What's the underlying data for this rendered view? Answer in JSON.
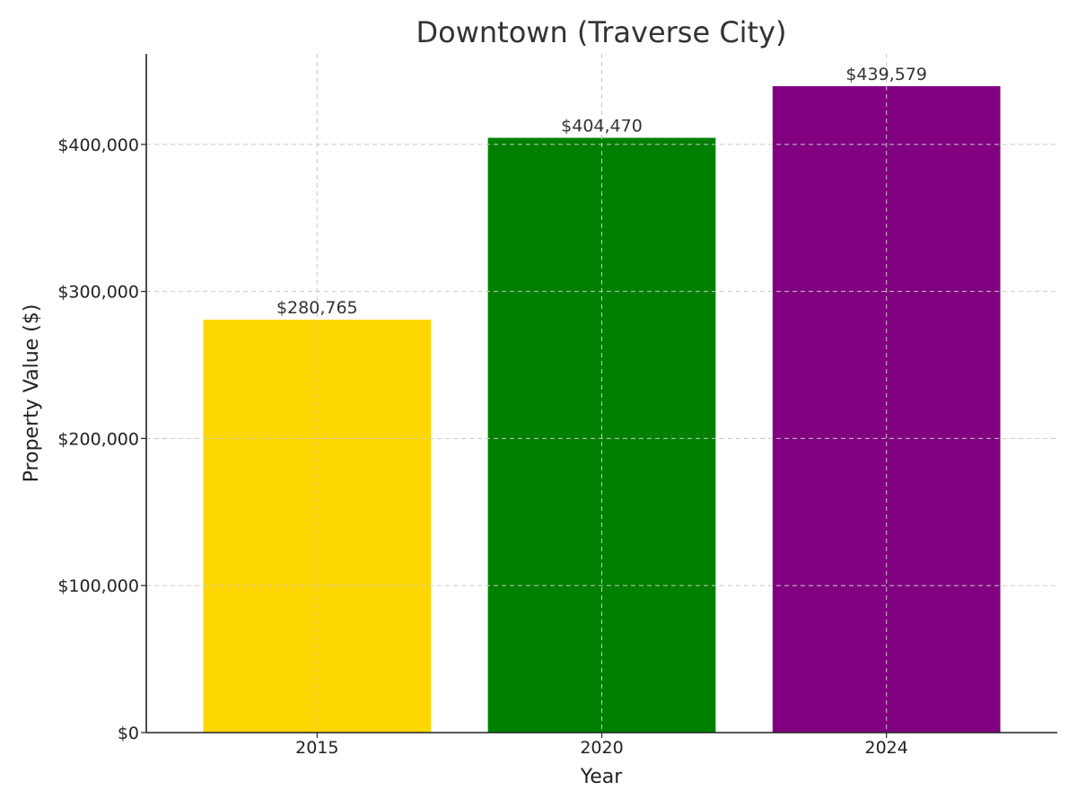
{
  "chart_data": {
    "type": "bar",
    "title": "Downtown (Traverse City)",
    "xlabel": "Year",
    "ylabel": "Property Value ($)",
    "categories": [
      "2015",
      "2020",
      "2024"
    ],
    "values": [
      280765,
      404470,
      439579
    ],
    "data_labels": [
      "$280,765",
      "$404,470",
      "$439,579"
    ],
    "colors": [
      "#FFD700",
      "#008000",
      "#800080"
    ],
    "ylim": [
      0,
      461558
    ],
    "yticks": [
      0,
      100000,
      200000,
      300000,
      400000
    ],
    "ytick_labels": [
      "$0",
      "$100,000",
      "$200,000",
      "$300,000",
      "$400,000"
    ],
    "grid": true
  }
}
